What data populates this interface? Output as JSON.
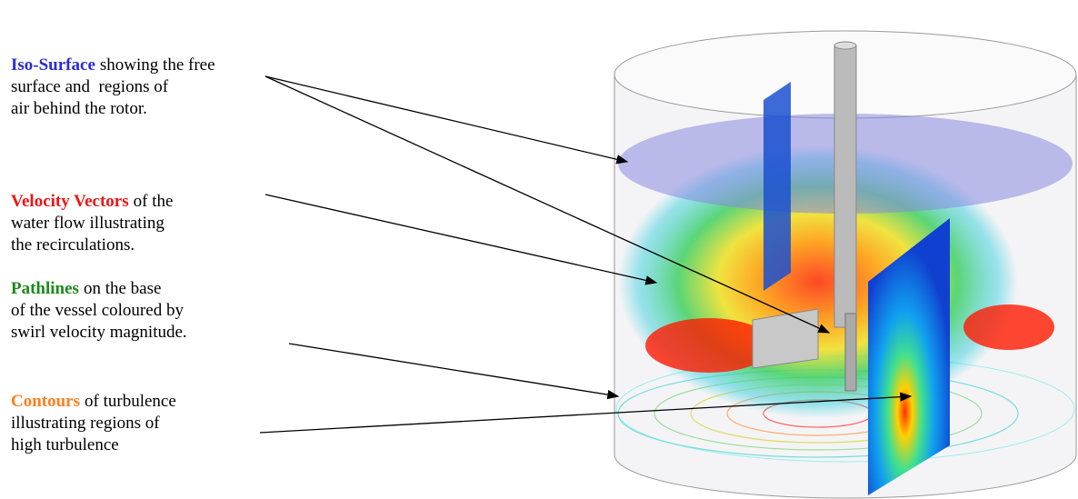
{
  "annotations": [
    {
      "term": "Iso-Surface",
      "lines": [
        "showing the free",
        "surface and  regions of",
        "air behind the rotor."
      ]
    },
    {
      "term": "Velocity Vectors",
      "lines": [
        "of the",
        "water flow illustrating",
        "the recirculations."
      ]
    },
    {
      "term": "Pathlines",
      "lines": [
        "on the base",
        "of the vessel coloured by",
        "swirl velocity magnitude."
      ]
    },
    {
      "term": "Contours",
      "lines": [
        "of turbulence",
        "illustrating regions of",
        "high turbulence"
      ]
    }
  ]
}
